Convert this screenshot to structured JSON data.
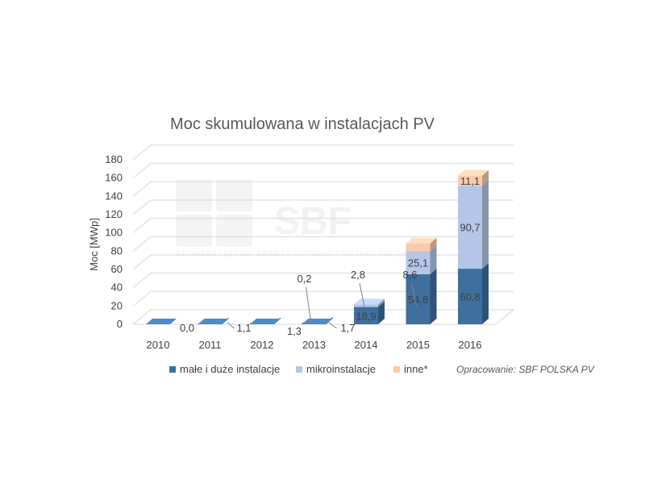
{
  "chart_data": {
    "type": "bar",
    "stacked": true,
    "three_d": true,
    "title": "Moc skumulowana w instalacjach PV",
    "ylabel": "Moc [MWp]",
    "xlabel": "",
    "ylim": [
      0,
      180
    ],
    "yticks": [
      0,
      20,
      40,
      60,
      80,
      100,
      120,
      140,
      160,
      180
    ],
    "grid": true,
    "legend_position": "bottom",
    "categories": [
      "2010",
      "2011",
      "2012",
      "2013",
      "2014",
      "2015",
      "2016"
    ],
    "series": [
      {
        "name": "małe i duże instalacje",
        "color": "#3f6f9f",
        "values": [
          0.0,
          1.1,
          1.3,
          1.7,
          18.9,
          54.8,
          60.8
        ],
        "labels": [
          "0,0",
          "1,1",
          "1,3",
          "1,7",
          "18,9",
          "54,8",
          "60,8"
        ]
      },
      {
        "name": "mikroinstalacje",
        "color": "#b4c7e7",
        "values": [
          0,
          0,
          0,
          0.2,
          2.8,
          25.1,
          90.7
        ],
        "labels": [
          "",
          "",
          "",
          "0,2",
          "2,8",
          "25,1",
          "90,7"
        ]
      },
      {
        "name": "inne*",
        "color": "#f8cbad",
        "values": [
          0,
          0,
          0,
          0,
          0,
          8.6,
          11.1
        ],
        "labels": [
          "",
          "",
          "",
          "",
          "",
          "8,6",
          "11,1"
        ]
      }
    ],
    "source": "Opracowanie: SBF POLSKA PV",
    "watermark": {
      "text": "SBF",
      "subtext": "STOWARZYSZENIE BRANŻY FOTOWOLTAICZNEJ POLSKA PV"
    }
  }
}
